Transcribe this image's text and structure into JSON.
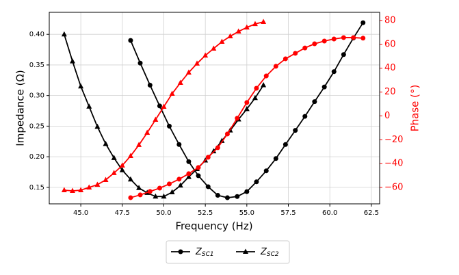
{
  "chart_data": {
    "type": "line",
    "xlabel": "Frequency (Hz)",
    "ylabel": "Impedance (Ω)",
    "y2label": "Phase (°)",
    "y2color": "#ff0000",
    "xlim": [
      43.1,
      63.0
    ],
    "ylim": [
      0.123,
      0.436
    ],
    "y2lim": [
      -73.8,
      86.9
    ],
    "xticks": [
      {
        "value": 45,
        "label": "45.0"
      },
      47.5,
      {
        "value": 50,
        "label": "50.0"
      },
      52.5,
      {
        "value": 55,
        "label": "55.0"
      },
      57.5,
      {
        "value": 60,
        "label": "60.0"
      },
      62.5
    ],
    "yticks": [
      0.15,
      {
        "value": 0.2,
        "label": "0.20"
      },
      0.25,
      {
        "value": 0.3,
        "label": "0.30"
      },
      0.35,
      {
        "value": 0.4,
        "label": "0.40"
      }
    ],
    "y2ticks": [
      {
        "value": -60,
        "label": "−60"
      },
      {
        "value": -40,
        "label": "−40"
      },
      {
        "value": -20,
        "label": "−20"
      },
      0,
      20,
      40,
      60,
      80
    ],
    "grid": true,
    "legend": "below",
    "series": [
      {
        "name": "ZSC1",
        "color": "#000000",
        "marker": "circle",
        "x": [
          48,
          48.58,
          49.17,
          49.75,
          50.33,
          50.92,
          51.5,
          52.08,
          52.67,
          53.25,
          53.83,
          54.42,
          55,
          55.58,
          56.17,
          56.75,
          57.33,
          57.92,
          58.5,
          59.08,
          59.67,
          60.25,
          60.83,
          61.42,
          62
        ],
        "values": [
          0.39,
          0.353,
          0.317,
          0.283,
          0.25,
          0.22,
          0.192,
          0.169,
          0.151,
          0.137,
          0.133,
          0.135,
          0.143,
          0.159,
          0.177,
          0.197,
          0.22,
          0.243,
          0.266,
          0.29,
          0.314,
          0.339,
          0.367,
          0.394,
          0.419
        ]
      },
      {
        "name": "ZSC2",
        "color": "#000000",
        "marker": "triangle",
        "x": [
          44,
          44.5,
          45,
          45.5,
          46,
          46.5,
          47,
          47.5,
          48,
          48.5,
          49,
          49.5,
          50,
          50.5,
          51,
          51.5,
          52,
          52.5,
          53,
          53.5,
          54,
          54.5,
          55,
          55.5,
          56
        ],
        "values": [
          0.4,
          0.356,
          0.315,
          0.282,
          0.249,
          0.221,
          0.198,
          0.178,
          0.163,
          0.149,
          0.141,
          0.135,
          0.135,
          0.142,
          0.153,
          0.167,
          0.18,
          0.194,
          0.209,
          0.226,
          0.243,
          0.261,
          0.278,
          0.296,
          0.317
        ]
      },
      {
        "color": "#ff0000",
        "marker": "circle",
        "axis": "y2",
        "x": [
          48,
          48.58,
          49.17,
          49.75,
          50.33,
          50.92,
          51.5,
          52.08,
          52.67,
          53.25,
          53.83,
          54.42,
          55,
          55.58,
          56.17,
          56.75,
          57.33,
          57.92,
          58.5,
          59.08,
          59.67,
          60.25,
          60.83,
          61.42,
          62
        ],
        "values": [
          -68.6,
          -66.3,
          -63.4,
          -60.6,
          -57.1,
          -53.1,
          -48.5,
          -43.3,
          -34.7,
          -26.7,
          -15.2,
          -2.0,
          11.2,
          23.2,
          33.5,
          41.6,
          47.9,
          52.5,
          57.0,
          60.5,
          62.8,
          64.5,
          65.7,
          65.7,
          65.2
        ]
      },
      {
        "color": "#ff0000",
        "marker": "triangle",
        "axis": "y2",
        "x": [
          44,
          44.5,
          45,
          45.5,
          46,
          46.5,
          47,
          47.5,
          48,
          48.5,
          49,
          49.5,
          50,
          50.5,
          51,
          51.5,
          52,
          52.5,
          53,
          53.5,
          54,
          54.5,
          55,
          55.5,
          56
        ],
        "values": [
          -62.3,
          -62.9,
          -62.3,
          -60.0,
          -57.7,
          -53.7,
          -47.9,
          -41.6,
          -33.6,
          -24.4,
          -14.1,
          -3.2,
          7.7,
          18.6,
          27.8,
          36.4,
          43.9,
          50.7,
          56.5,
          62.2,
          66.8,
          70.8,
          74.2,
          77.1,
          78.9
        ]
      }
    ]
  }
}
